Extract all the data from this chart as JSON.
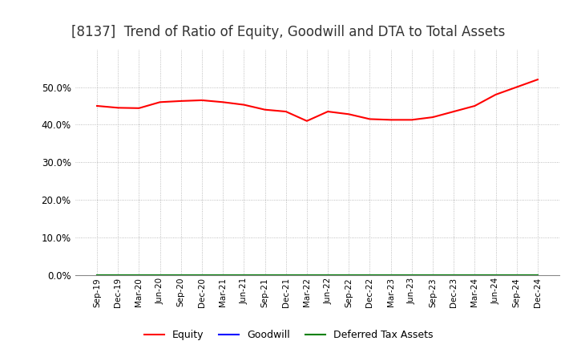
{
  "title": "[8137]  Trend of Ratio of Equity, Goodwill and DTA to Total Assets",
  "x_labels": [
    "Sep-19",
    "Dec-19",
    "Mar-20",
    "Jun-20",
    "Sep-20",
    "Dec-20",
    "Mar-21",
    "Jun-21",
    "Sep-21",
    "Dec-21",
    "Mar-22",
    "Jun-22",
    "Sep-22",
    "Dec-22",
    "Mar-23",
    "Jun-23",
    "Sep-23",
    "Dec-23",
    "Mar-24",
    "Jun-24",
    "Sep-24",
    "Dec-24"
  ],
  "equity": [
    0.45,
    0.445,
    0.444,
    0.46,
    0.463,
    0.465,
    0.46,
    0.453,
    0.44,
    0.435,
    0.41,
    0.435,
    0.428,
    0.415,
    0.413,
    0.413,
    0.42,
    0.435,
    0.45,
    0.48,
    0.5,
    0.52
  ],
  "goodwill": [
    0.0,
    0.0,
    0.0,
    0.0,
    0.0,
    0.0,
    0.0,
    0.0,
    0.0,
    0.0,
    0.0,
    0.0,
    0.0,
    0.0,
    0.0,
    0.0,
    0.0,
    0.0,
    0.0,
    0.0,
    0.0,
    0.0
  ],
  "dta": [
    0.0,
    0.0,
    0.0,
    0.0,
    0.0,
    0.0,
    0.0,
    0.0,
    0.0,
    0.0,
    0.0,
    0.0,
    0.0,
    0.0,
    0.0,
    0.0,
    0.0,
    0.0,
    0.0,
    0.0,
    0.0,
    0.0
  ],
  "equity_color": "#FF0000",
  "goodwill_color": "#0000FF",
  "dta_color": "#008000",
  "ylim": [
    0.0,
    0.6
  ],
  "yticks": [
    0.0,
    0.1,
    0.2,
    0.3,
    0.4,
    0.5
  ],
  "background_color": "#FFFFFF",
  "plot_bg_color": "#FFFFFF",
  "grid_color": "#AAAAAA",
  "title_fontsize": 12,
  "legend_labels": [
    "Equity",
    "Goodwill",
    "Deferred Tax Assets"
  ]
}
